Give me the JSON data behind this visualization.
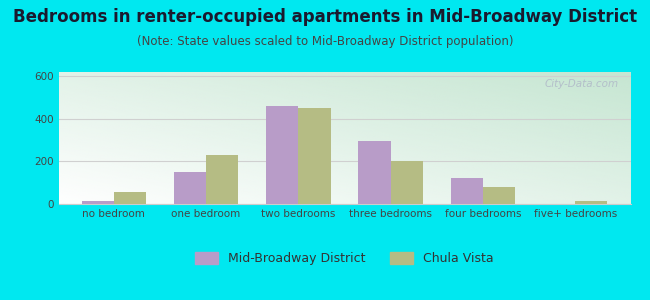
{
  "title": "Bedrooms in renter-occupied apartments in Mid-Broadway District",
  "subtitle": "(Note: State values scaled to Mid-Broadway District population)",
  "categories": [
    "no bedroom",
    "one bedroom",
    "two bedrooms",
    "three bedrooms",
    "four bedrooms",
    "five+ bedrooms"
  ],
  "mid_broadway": [
    15,
    148,
    460,
    295,
    120,
    0
  ],
  "chula_vista": [
    55,
    228,
    450,
    202,
    78,
    12
  ],
  "mid_broadway_color": "#b89cc8",
  "chula_vista_color": "#b5bc84",
  "ylim": [
    0,
    620
  ],
  "yticks": [
    0,
    200,
    400,
    600
  ],
  "bar_width": 0.35,
  "background_outer": "#00e8f0",
  "grid_color": "#e0e0e0",
  "title_fontsize": 12,
  "subtitle_fontsize": 8.5,
  "tick_fontsize": 7.5,
  "legend_fontsize": 9
}
